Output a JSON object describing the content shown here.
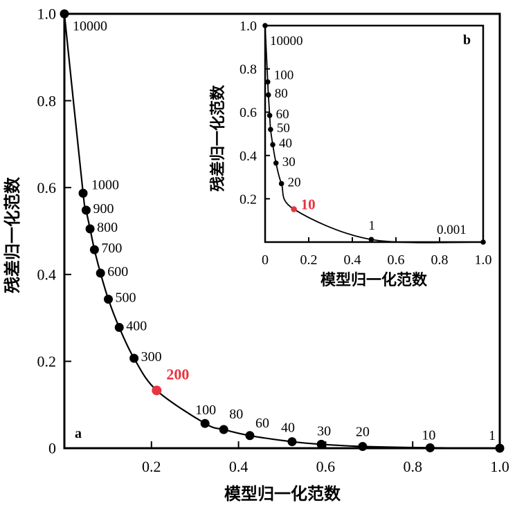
{
  "chart_data": [
    {
      "panel": "a",
      "type": "line",
      "xlabel": "模型归一化范数",
      "ylabel": "残差归一化范数",
      "xlim": [
        0,
        1.0
      ],
      "ylim": [
        0,
        1.0
      ],
      "xticks": [
        0,
        0.2,
        0.4,
        0.6,
        0.8,
        1.0
      ],
      "xtick_labels": [
        "",
        "0.2",
        "0.4",
        "0.6",
        "0.8",
        "1.0"
      ],
      "yticks": [
        0,
        0.2,
        0.4,
        0.6,
        0.8,
        1.0
      ],
      "ytick_labels": [
        "0",
        "0.2",
        "0.4",
        "0.6",
        "0.8",
        "1.0"
      ],
      "grid": false,
      "highlight_color": "#e8343f",
      "points": [
        {
          "x": 0.0,
          "y": 1.0,
          "label": "10000"
        },
        {
          "x": 0.043,
          "y": 0.587,
          "label": "1000"
        },
        {
          "x": 0.05,
          "y": 0.548,
          "label": "900"
        },
        {
          "x": 0.059,
          "y": 0.505,
          "label": "800"
        },
        {
          "x": 0.069,
          "y": 0.457,
          "label": "700"
        },
        {
          "x": 0.083,
          "y": 0.403,
          "label": "600"
        },
        {
          "x": 0.101,
          "y": 0.343,
          "label": "500"
        },
        {
          "x": 0.126,
          "y": 0.278,
          "label": "400"
        },
        {
          "x": 0.16,
          "y": 0.207,
          "label": "300"
        },
        {
          "x": 0.212,
          "y": 0.133,
          "label": "200",
          "highlight": true
        },
        {
          "x": 0.323,
          "y": 0.057,
          "label": "100"
        },
        {
          "x": 0.366,
          "y": 0.043,
          "label": "80"
        },
        {
          "x": 0.426,
          "y": 0.029,
          "label": "60"
        },
        {
          "x": 0.523,
          "y": 0.015,
          "label": "40"
        },
        {
          "x": 0.59,
          "y": 0.009,
          "label": "30"
        },
        {
          "x": 0.685,
          "y": 0.004,
          "label": "20"
        },
        {
          "x": 0.84,
          "y": 0.001,
          "label": "10"
        },
        {
          "x": 1.0,
          "y": 0.0,
          "label": "1"
        }
      ]
    },
    {
      "panel": "b",
      "type": "line",
      "xlabel": "模型归一化范数",
      "ylabel": "残差归一化范数",
      "xlim": [
        0,
        1.0
      ],
      "ylim": [
        0,
        1.0
      ],
      "xticks": [
        0,
        0.2,
        0.4,
        0.6,
        0.8,
        1.0
      ],
      "xtick_labels": [
        "0",
        "0.2",
        "0.4",
        "0.6",
        "0.8",
        "1.0"
      ],
      "yticks": [
        0,
        0.2,
        0.4,
        0.6,
        0.8,
        1.0
      ],
      "ytick_labels": [
        "",
        "0.2",
        "0.4",
        "0.6",
        "0.8",
        "1.0"
      ],
      "grid": false,
      "highlight_color": "#e8343f",
      "points": [
        {
          "x": 0.0,
          "y": 1.0,
          "label": "10000"
        },
        {
          "x": 0.012,
          "y": 0.74,
          "label": "100"
        },
        {
          "x": 0.015,
          "y": 0.68,
          "label": "80"
        },
        {
          "x": 0.021,
          "y": 0.585,
          "label": "60"
        },
        {
          "x": 0.025,
          "y": 0.52,
          "label": "50"
        },
        {
          "x": 0.035,
          "y": 0.45,
          "label": "40"
        },
        {
          "x": 0.05,
          "y": 0.365,
          "label": "30"
        },
        {
          "x": 0.075,
          "y": 0.27,
          "label": "20"
        },
        {
          "x": 0.132,
          "y": 0.152,
          "label": "10",
          "highlight": true
        },
        {
          "x": 0.487,
          "y": 0.012,
          "label": "1"
        },
        {
          "x": 1.0,
          "y": 0.0,
          "label": "0.001"
        }
      ]
    }
  ]
}
